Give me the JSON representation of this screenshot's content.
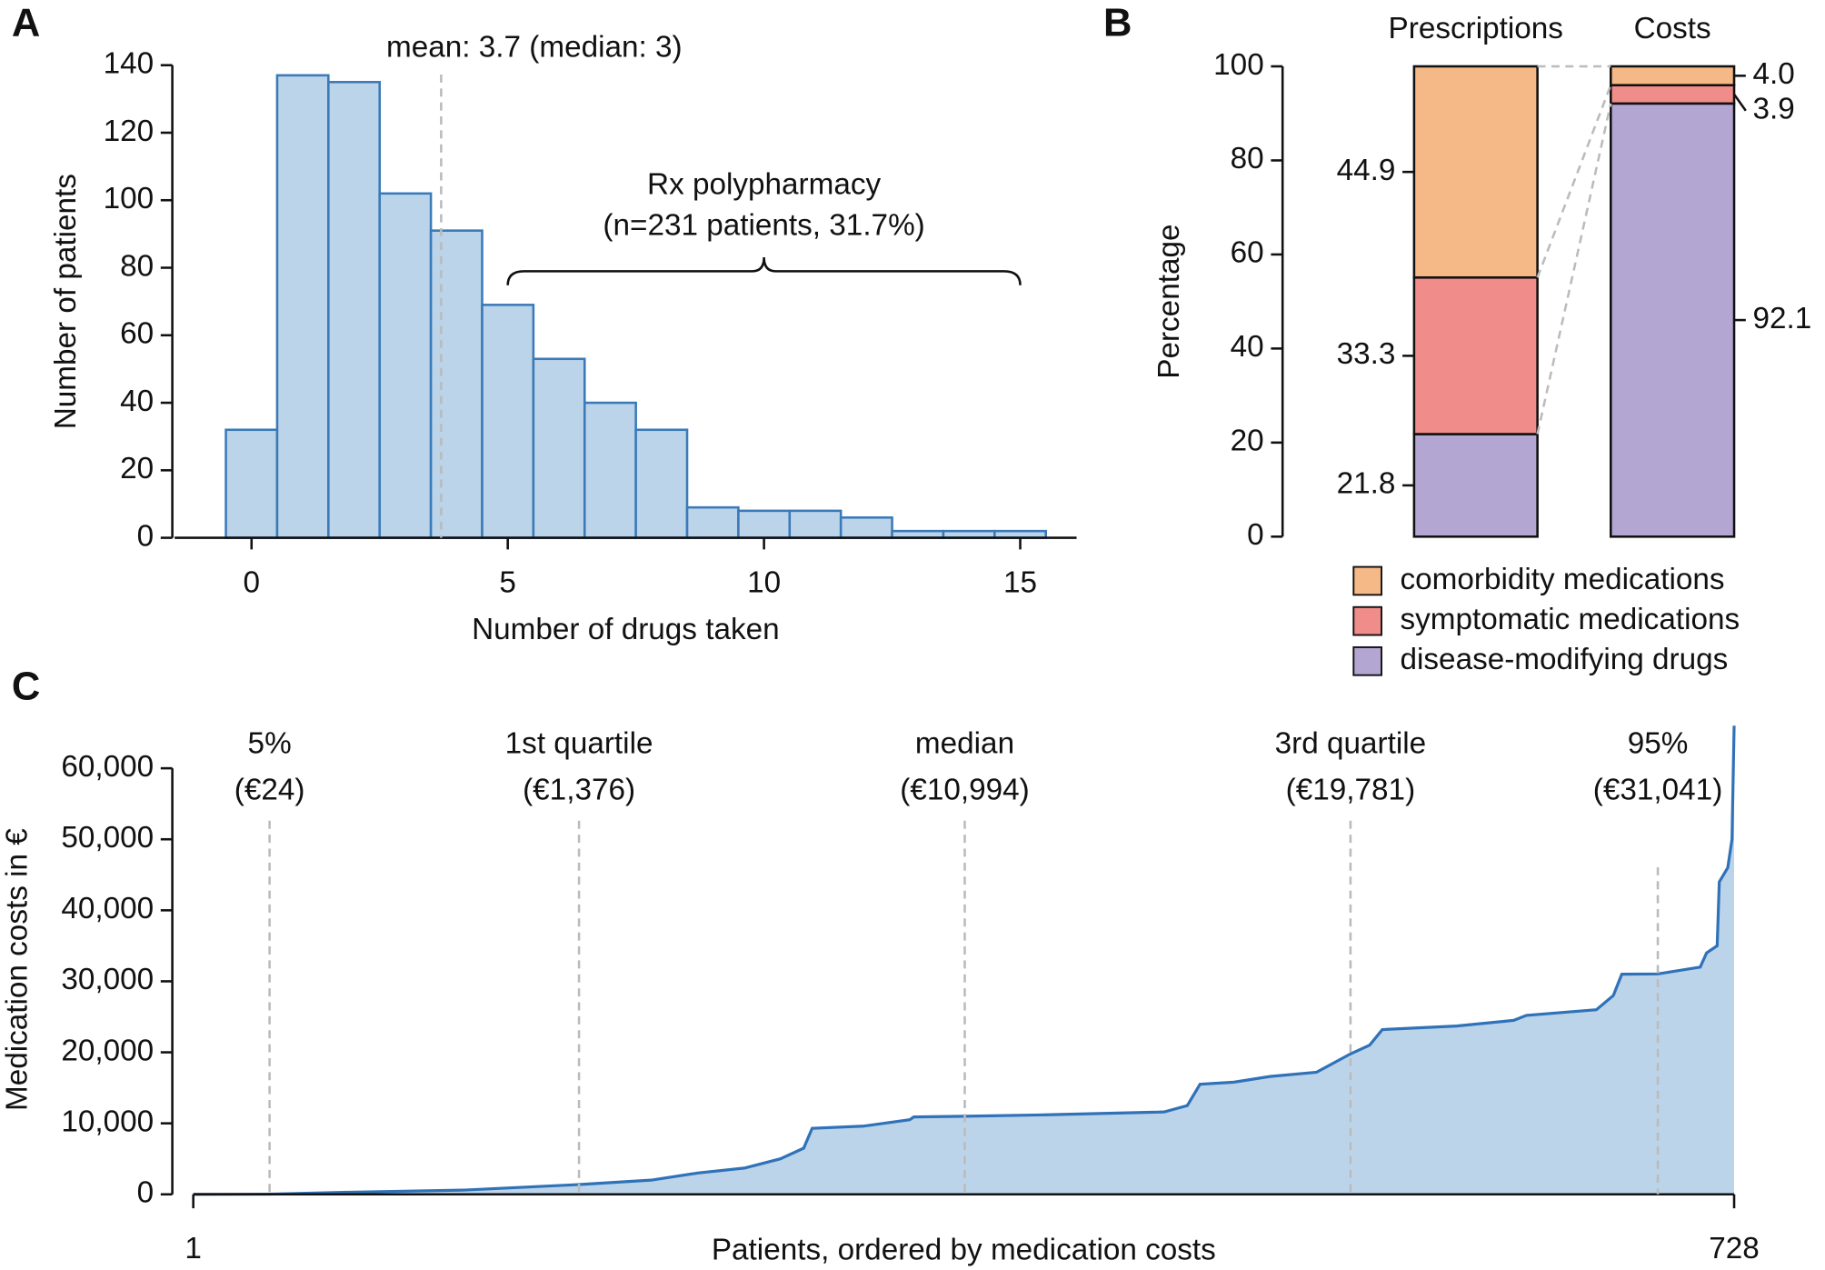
{
  "chart_data": [
    {
      "type": "histogram",
      "panel": "A",
      "x_label": "Number of drugs taken",
      "y_label": "Number of patients",
      "bins": [
        -0.5,
        0.5,
        1.5,
        2.5,
        3.5,
        4.5,
        5.5,
        6.5,
        7.5,
        8.5,
        9.5,
        10.5,
        11.5,
        12.5,
        13.5,
        14.5,
        15.5
      ],
      "counts": [
        32,
        137,
        135,
        102,
        91,
        69,
        53,
        40,
        32,
        9,
        8,
        8,
        6,
        2,
        2,
        2
      ],
      "color": "#bcd4ea",
      "edge_color": "#3a7ab8",
      "xlim": [
        -1.5,
        16.1
      ],
      "xticks": [
        0,
        5,
        10,
        15
      ],
      "ylim": [
        0,
        140
      ],
      "yticks": [
        0,
        20,
        40,
        60,
        80,
        100,
        120,
        140
      ],
      "reference_x": 3.7,
      "reference_label": "mean: 3.7 (median: 3)",
      "brace_range": [
        5,
        15
      ],
      "brace_label": [
        "Rx polypharmacy",
        "(n=231 patients, 31.7%)"
      ]
    },
    {
      "type": "stacked_bar",
      "panel": "B",
      "y_label": "Percentage",
      "categories": [
        "Prescriptions",
        "Costs"
      ],
      "series": [
        {
          "name": "disease-modifying drugs",
          "color": "#b3a6d3",
          "values": [
            21.8,
            92.1
          ],
          "value_labels": [
            "21.8",
            "92.1"
          ]
        },
        {
          "name": "symptomatic medications",
          "color": "#f08c8a",
          "values": [
            33.3,
            3.9
          ],
          "value_labels": [
            "33.3",
            "3.9"
          ]
        },
        {
          "name": "comorbidity medications",
          "color": "#f5b887",
          "values": [
            44.9,
            4
          ],
          "value_labels": [
            "44.9",
            "4.0"
          ]
        }
      ],
      "ylim": [
        0,
        100
      ],
      "yticks": [
        0,
        20,
        40,
        60,
        80,
        100
      ]
    },
    {
      "type": "area",
      "panel": "C",
      "x_label": "Patients, ordered by medication costs",
      "y_label": "Medication costs in €",
      "x": [
        1,
        37,
        75,
        129,
        183,
        217,
        239,
        261,
        278,
        289,
        293,
        317,
        339,
        341,
        365,
        404,
        459,
        470,
        476,
        492,
        509,
        531,
        547,
        556,
        562,
        597,
        624,
        630,
        663,
        671,
        675,
        692,
        712,
        715,
        720,
        721,
        725,
        727,
        728
      ],
      "values": [
        0,
        24,
        300,
        600,
        1376,
        2000,
        3000,
        3700,
        5000,
        6500,
        9300,
        9600,
        10500,
        10900,
        10994,
        11200,
        11600,
        12500,
        15500,
        15800,
        16600,
        17200,
        19781,
        21000,
        23200,
        23700,
        24500,
        25200,
        26000,
        28000,
        31000,
        31041,
        32000,
        34000,
        35000,
        44000,
        46000,
        50000,
        66000
      ],
      "color": "#bcd4ea",
      "line_color": "#2f72b8",
      "xlim": [
        1,
        728
      ],
      "xticks": [
        1,
        728
      ],
      "ylim": [
        0,
        60000
      ],
      "yticks": [
        0,
        {
          "value": 10000,
          "label": "10,000"
        },
        {
          "value": 20000,
          "label": "20,000"
        },
        {
          "value": 30000,
          "label": "30,000"
        },
        {
          "value": 40000,
          "label": "40,000"
        },
        {
          "value": 50000,
          "label": "50,000"
        },
        {
          "value": 60000,
          "label": "60,000"
        }
      ],
      "markers": [
        {
          "x": 37,
          "label": "5%",
          "value_label": "(€24)"
        },
        {
          "x": 183,
          "label": "1st quartile",
          "value_label": "(€1,376)"
        },
        {
          "x": 365,
          "label": "median",
          "value_label": "(€10,994)"
        },
        {
          "x": 547,
          "label": "3rd quartile",
          "value_label": "(€19,781)"
        },
        {
          "x": 692,
          "label": "95%",
          "value_label": "(€31,041)"
        }
      ]
    }
  ]
}
